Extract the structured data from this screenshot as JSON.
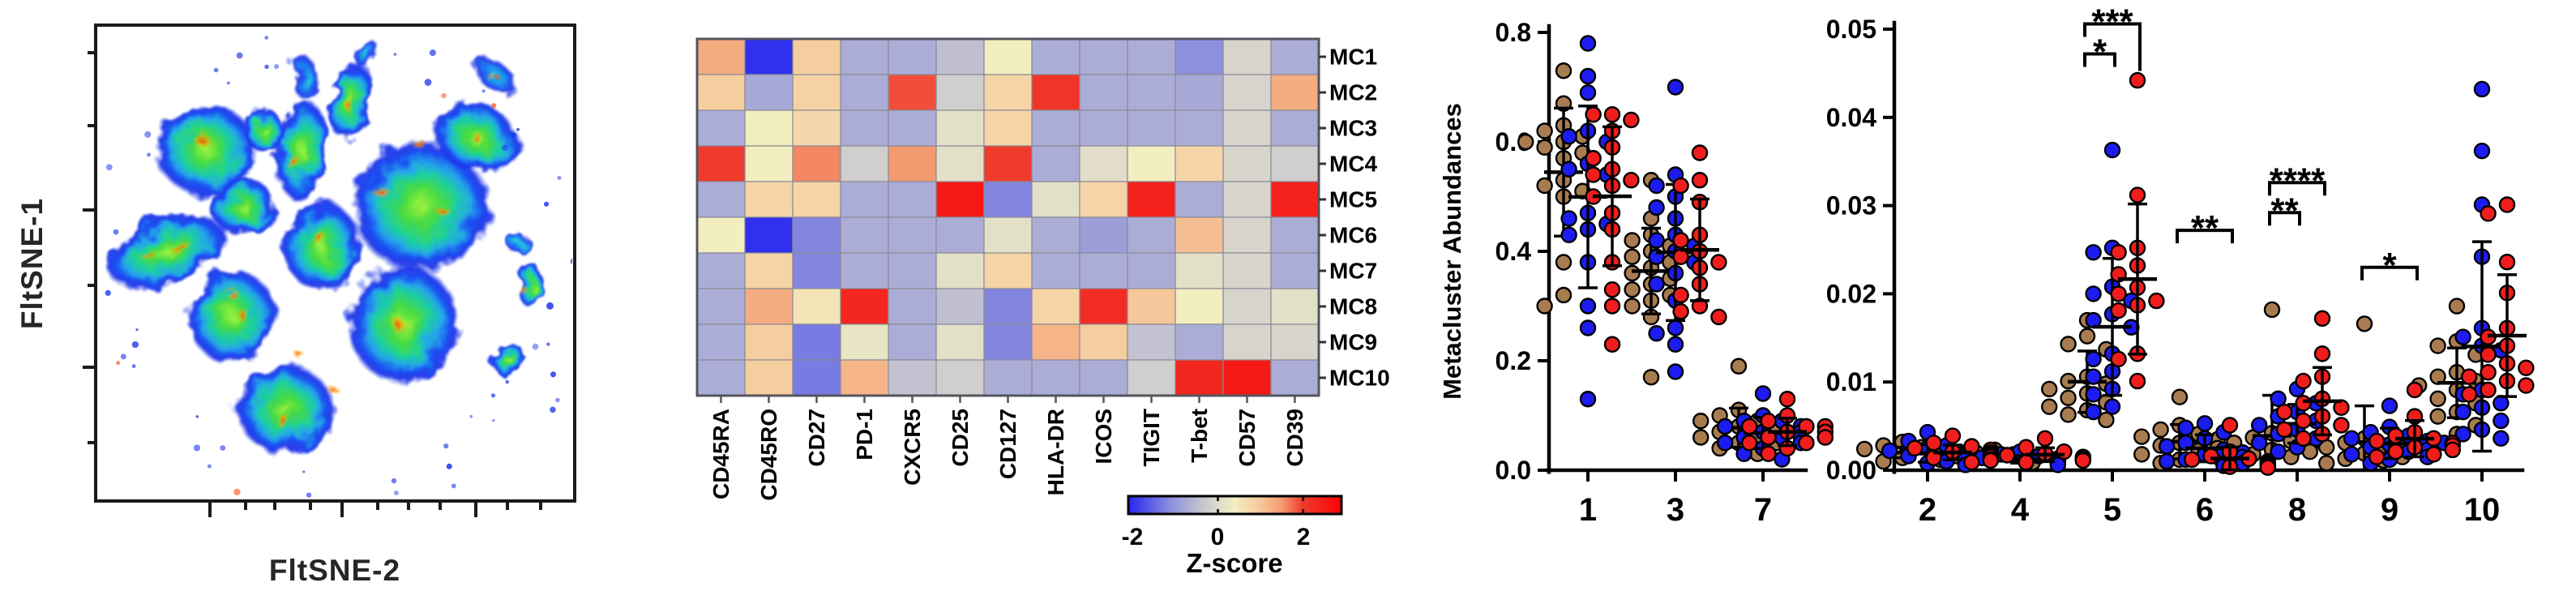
{
  "figure": {
    "background": "#ffffff",
    "description": "Three-part cytometry figure: FltSNE density map, marker z-score heatmap for metaclusters MC1-MC10, and two metacluster abundance dot plots with three sample groups (tan, blue, red) and significance brackets."
  },
  "colors": {
    "tan": "#A87C50",
    "blue": "#1C1CF0",
    "red": "#F01D1D",
    "axis": "#000000"
  },
  "chart_data": [
    {
      "id": "fltsne_density",
      "type": "heatmap",
      "subtype": "tsne-density-embedding",
      "xlabel": "FltSNE-2",
      "ylabel": "FltSNE-1",
      "note": "Stylized recreation of a 2-D FltSNE cell-density map: blue low-density island edges with green/yellow cores and orange-red high-density flecks.",
      "blobs": [
        [
          255,
          185,
          64,
          58,
          0
        ],
        [
          205,
          310,
          80,
          42,
          -18
        ],
        [
          300,
          255,
          42,
          36,
          0
        ],
        [
          286,
          390,
          56,
          60,
          0
        ],
        [
          352,
          505,
          62,
          56,
          0
        ],
        [
          398,
          305,
          48,
          58,
          0
        ],
        [
          372,
          185,
          33,
          62,
          8
        ],
        [
          432,
          125,
          26,
          48,
          12
        ],
        [
          520,
          255,
          88,
          82,
          0
        ],
        [
          588,
          170,
          56,
          44,
          28
        ],
        [
          498,
          400,
          70,
          76,
          0
        ],
        [
          612,
          95,
          32,
          18,
          32,
          "b"
        ],
        [
          655,
          352,
          20,
          27,
          0
        ],
        [
          627,
          443,
          23,
          18,
          -24
        ],
        [
          378,
          98,
          18,
          27,
          0,
          "b"
        ],
        [
          452,
          66,
          15,
          21,
          10,
          "b"
        ],
        [
          325,
          160,
          25,
          30,
          -15
        ],
        [
          640,
          300,
          15,
          14,
          0,
          "b"
        ]
      ],
      "hot_spots": [
        [
          250,
          175,
          14,
          10,
          0
        ],
        [
          222,
          305,
          16,
          7,
          -18
        ],
        [
          362,
          200,
          8,
          12,
          0
        ],
        [
          396,
          295,
          10,
          9,
          0
        ],
        [
          468,
          235,
          12,
          9,
          0
        ],
        [
          548,
          262,
          9,
          8,
          0
        ],
        [
          302,
          392,
          10,
          8,
          0
        ],
        [
          352,
          522,
          11,
          8,
          0
        ],
        [
          586,
          168,
          8,
          6,
          0
        ],
        [
          640,
          352,
          6,
          7,
          0
        ],
        [
          492,
          402,
          11,
          9,
          0
        ],
        [
          432,
          132,
          6,
          9,
          0
        ],
        [
          286,
          362,
          9,
          7,
          0
        ],
        [
          520,
          180,
          10,
          7,
          0
        ],
        [
          606,
          94,
          8,
          5,
          30
        ],
        [
          180,
          312,
          10,
          5,
          -18
        ],
        [
          410,
          480,
          8,
          6,
          0
        ],
        [
          372,
          440,
          7,
          6,
          0
        ]
      ]
    },
    {
      "id": "marker_heatmap",
      "type": "heatmap",
      "rows": [
        "MC1",
        "MC2",
        "MC3",
        "MC4",
        "MC5",
        "MC6",
        "MC7",
        "MC8",
        "MC9",
        "MC10"
      ],
      "columns": [
        "CD45RA",
        "CD45RO",
        "CD27",
        "PD-1",
        "CXCR5",
        "CD25",
        "CD127",
        "HLA-DR",
        "ICOS",
        "TIGIT",
        "T-bet",
        "CD57",
        "CD39"
      ],
      "values": [
        [
          1.3,
          -2.0,
          0.9,
          -0.7,
          -0.7,
          -0.45,
          0.4,
          -0.7,
          -0.7,
          -0.7,
          -1.1,
          -0.1,
          -0.7
        ],
        [
          0.9,
          -0.75,
          0.85,
          -0.7,
          1.9,
          -0.2,
          0.8,
          2.1,
          -0.7,
          -0.7,
          -0.75,
          -0.1,
          1.3
        ],
        [
          -0.7,
          0.4,
          0.75,
          -0.7,
          -0.7,
          0.1,
          0.8,
          -0.7,
          -0.7,
          -0.7,
          -0.7,
          -0.1,
          -0.7
        ],
        [
          2.0,
          0.4,
          1.6,
          -0.2,
          1.5,
          0.1,
          2.0,
          -0.7,
          0.05,
          0.4,
          0.8,
          -0.1,
          -0.2
        ],
        [
          -0.7,
          0.8,
          0.8,
          -0.7,
          -0.7,
          2.5,
          -1.2,
          0.1,
          0.8,
          2.4,
          -0.7,
          -0.1,
          2.4
        ],
        [
          0.4,
          -2.0,
          -1.2,
          -0.7,
          -0.7,
          -0.7,
          0.1,
          -0.7,
          -0.9,
          -0.7,
          1.1,
          -0.1,
          -0.7
        ],
        [
          -0.7,
          0.8,
          -1.2,
          -0.7,
          -0.7,
          0.1,
          0.8,
          -0.7,
          -0.7,
          -0.7,
          0.1,
          -0.1,
          -0.7
        ],
        [
          -0.7,
          1.3,
          0.55,
          2.3,
          -0.7,
          -0.45,
          -1.2,
          0.8,
          2.2,
          1.0,
          0.4,
          -0.1,
          0.1
        ],
        [
          -0.7,
          0.9,
          -1.3,
          0.2,
          -0.7,
          0.1,
          -1.2,
          1.2,
          0.9,
          -0.4,
          -0.7,
          -0.1,
          -0.1
        ],
        [
          -0.7,
          0.9,
          -1.3,
          1.2,
          -0.4,
          -0.2,
          -0.7,
          -0.7,
          -0.7,
          -0.2,
          2.3,
          2.5,
          -0.7
        ]
      ],
      "colorbar": {
        "label": "Z-score",
        "ticks": [
          "-2",
          "0",
          "2"
        ],
        "range": [
          -2.1,
          2.9
        ]
      }
    },
    {
      "id": "abundance_major",
      "type": "scatter",
      "ylabel": "Metacluster Abundances",
      "ylim": [
        0,
        0.8
      ],
      "yticks": [
        "0.0",
        "0.2",
        "0.4",
        "0.6",
        "0.8"
      ],
      "categories": [
        "1",
        "3",
        "7"
      ],
      "series": [
        {
          "name": "tan",
          "color": "#A87C50",
          "values": {
            "1": [
              0.73,
              0.67,
              0.63,
              0.62,
              0.61,
              0.6,
              0.6,
              0.59,
              0.58,
              0.57,
              0.53,
              0.52,
              0.51,
              0.5,
              0.38,
              0.32,
              0.3
            ],
            "3": [
              0.53,
              0.46,
              0.43,
              0.42,
              0.41,
              0.4,
              0.39,
              0.38,
              0.37,
              0.36,
              0.35,
              0.34,
              0.33,
              0.32,
              0.31,
              0.3,
              0.28,
              0.17
            ],
            "7": [
              0.19,
              0.11,
              0.1,
              0.09,
              0.09,
              0.08,
              0.08,
              0.08,
              0.07,
              0.07,
              0.07,
              0.06,
              0.06,
              0.05,
              0.05,
              0.04,
              0.03
            ]
          }
        },
        {
          "name": "blue",
          "color": "#1C1CF0",
          "values": {
            "1": [
              0.78,
              0.72,
              0.69,
              0.62,
              0.61,
              0.6,
              0.56,
              0.55,
              0.54,
              0.47,
              0.46,
              0.45,
              0.44,
              0.43,
              0.38,
              0.3,
              0.26,
              0.13
            ],
            "3": [
              0.7,
              0.54,
              0.52,
              0.5,
              0.48,
              0.46,
              0.43,
              0.42,
              0.41,
              0.4,
              0.39,
              0.38,
              0.36,
              0.34,
              0.31,
              0.26,
              0.25,
              0.23,
              0.18
            ],
            "7": [
              0.14,
              0.1,
              0.09,
              0.09,
              0.08,
              0.08,
              0.07,
              0.07,
              0.07,
              0.06,
              0.06,
              0.06,
              0.05,
              0.05,
              0.04,
              0.03,
              0.02
            ]
          }
        },
        {
          "name": "red",
          "color": "#F01D1D",
          "values": {
            "1": [
              0.65,
              0.65,
              0.64,
              0.62,
              0.59,
              0.57,
              0.55,
              0.54,
              0.53,
              0.52,
              0.5,
              0.47,
              0.44,
              0.38,
              0.33,
              0.3,
              0.23
            ],
            "3": [
              0.58,
              0.53,
              0.52,
              0.49,
              0.43,
              0.42,
              0.4,
              0.39,
              0.38,
              0.37,
              0.34,
              0.32,
              0.3,
              0.29,
              0.28
            ],
            "7": [
              0.13,
              0.1,
              0.09,
              0.08,
              0.08,
              0.08,
              0.07,
              0.07,
              0.06,
              0.06,
              0.06,
              0.05,
              0.05,
              0.04,
              0.03
            ]
          }
        }
      ]
    },
    {
      "id": "abundance_minor",
      "type": "scatter",
      "ylim": [
        0,
        0.05
      ],
      "yticks": [
        "0.00",
        "0.01",
        "0.02",
        "0.03",
        "0.04",
        "0.05"
      ],
      "categories": [
        "2",
        "4",
        "5",
        "6",
        "8",
        "9",
        "10"
      ],
      "series": [
        {
          "name": "tan",
          "color": "#A87C50",
          "values": {
            "2": [
              0.0032,
              0.0028,
              0.0026,
              0.0024,
              0.0023,
              0.0022,
              0.0021,
              0.002,
              0.0019,
              0.0018,
              0.0017,
              0.0016,
              0.0014,
              0.0012,
              0.001
            ],
            "4": [
              0.0023,
              0.002,
              0.0018,
              0.0016,
              0.0015,
              0.0014,
              0.0013,
              0.0013,
              0.0012,
              0.0011,
              0.001,
              0.0009
            ],
            "5": [
              0.017,
              0.0152,
              0.0143,
              0.0137,
              0.0106,
              0.0101,
              0.0098,
              0.0092,
              0.0087,
              0.0082,
              0.0077,
              0.0072,
              0.0068,
              0.0063,
              0.0057
            ],
            "6": [
              0.0083,
              0.0051,
              0.0046,
              0.0041,
              0.0038,
              0.0035,
              0.0031,
              0.0028,
              0.0025,
              0.0022,
              0.0018,
              0.0015,
              0.0012,
              0.0008
            ],
            "8": [
              0.0182,
              0.0042,
              0.0037,
              0.0033,
              0.0031,
              0.0028,
              0.0026,
              0.0023,
              0.0021,
              0.0018,
              0.0015,
              0.0012
            ],
            "9": [
              0.0166,
              0.0036,
              0.0031,
              0.0028,
              0.0026,
              0.0023,
              0.0021,
              0.0019,
              0.0017,
              0.0015,
              0.0013,
              0.0011,
              0.0008
            ],
            "10": [
              0.0186,
              0.0146,
              0.0141,
              0.0131,
              0.0111,
              0.0106,
              0.0101,
              0.0096,
              0.0091,
              0.0081,
              0.0076,
              0.0066,
              0.0061,
              0.0051,
              0.0041
            ]
          }
        },
        {
          "name": "blue",
          "color": "#1C1CF0",
          "values": {
            "2": [
              0.0043,
              0.0033,
              0.0028,
              0.0025,
              0.0022,
              0.002,
              0.0018,
              0.0017,
              0.0016,
              0.0014,
              0.0013,
              0.0012,
              0.001,
              0.0008,
              0.0006
            ],
            "4": [
              0.0021,
              0.0018,
              0.0016,
              0.0014,
              0.0013,
              0.0012,
              0.0011,
              0.001,
              0.001,
              0.0009,
              0.0008,
              0.0006
            ],
            "5": [
              0.0363,
              0.0252,
              0.0247,
              0.0208,
              0.02,
              0.0192,
              0.0177,
              0.017,
              0.0162,
              0.0132,
              0.0126,
              0.0112,
              0.0106,
              0.0092,
              0.0086,
              0.0072,
              0.0066
            ],
            "6": [
              0.0053,
              0.0048,
              0.0043,
              0.0036,
              0.0031,
              0.0027,
              0.0023,
              0.002,
              0.0018,
              0.0015,
              0.0012,
              0.001,
              0.0008,
              0.0005
            ],
            "8": [
              0.0092,
              0.0081,
              0.0076,
              0.0066,
              0.0061,
              0.0056,
              0.0051,
              0.0046,
              0.0041,
              0.0036,
              0.0031,
              0.0026,
              0.0021
            ],
            "9": [
              0.0073,
              0.0049,
              0.0043,
              0.0039,
              0.0036,
              0.0033,
              0.0029,
              0.0026,
              0.0023,
              0.0021,
              0.0018,
              0.0015,
              0.0012,
              0.0008
            ],
            "10": [
              0.0432,
              0.0362,
              0.0301,
              0.0242,
              0.0161,
              0.0151,
              0.0141,
              0.0136,
              0.0091,
              0.0086,
              0.0076,
              0.0071,
              0.0066,
              0.0056,
              0.0046,
              0.0041,
              0.0036,
              0.0031
            ]
          }
        },
        {
          "name": "red",
          "color": "#F01D1D",
          "values": {
            "2": [
              0.0039,
              0.0031,
              0.0027,
              0.0025,
              0.0023,
              0.0021,
              0.002,
              0.0018,
              0.0017,
              0.0015,
              0.0014,
              0.0012,
              0.0011,
              0.0009
            ],
            "4": [
              0.0036,
              0.0026,
              0.0021,
              0.0019,
              0.0017,
              0.0015,
              0.0014,
              0.0013,
              0.0012,
              0.0011,
              0.0009
            ],
            "5": [
              0.0442,
              0.0312,
              0.0252,
              0.0247,
              0.0232,
              0.0222,
              0.0207,
              0.02,
              0.0192,
              0.0187,
              0.0181,
              0.0132,
              0.0126,
              0.0101
            ],
            "6": [
              0.0051,
              0.0021,
              0.0016,
              0.0013,
              0.0012,
              0.001,
              0.0009,
              0.0008,
              0.0007,
              0.0005,
              0.0004,
              0.0003
            ],
            "8": [
              0.0172,
              0.0132,
              0.0106,
              0.0101,
              0.0081,
              0.0076,
              0.0071,
              0.0066,
              0.0061,
              0.0056,
              0.0051,
              0.0046,
              0.0041,
              0.0036
            ],
            "9": [
              0.0091,
              0.0061,
              0.0043,
              0.0039,
              0.0036,
              0.0033,
              0.0031,
              0.0028,
              0.0026,
              0.0023,
              0.0021,
              0.0018,
              0.0015
            ],
            "10": [
              0.0301,
              0.0291,
              0.0236,
              0.0201,
              0.0161,
              0.0151,
              0.0141,
              0.0131,
              0.0121,
              0.0116,
              0.0111,
              0.0106,
              0.0101,
              0.0096,
              0.0091,
              0.0086
            ]
          }
        }
      ],
      "significance": [
        {
          "category": "5",
          "between": [
            "tan",
            "blue"
          ],
          "label": "*",
          "y": 0.0472
        },
        {
          "category": "5",
          "between": [
            "tan",
            "red"
          ],
          "label": "***",
          "y": 0.0506,
          "legB": 58
        },
        {
          "category": "6",
          "between": [
            "tan",
            "red"
          ],
          "label": "**",
          "y": 0.0272
        },
        {
          "category": "8",
          "between": [
            "tan",
            "blue"
          ],
          "label": "**",
          "y": 0.0292
        },
        {
          "category": "8",
          "between": [
            "tan",
            "red"
          ],
          "label": "****",
          "y": 0.0326
        },
        {
          "category": "9",
          "between": [
            "tan",
            "red"
          ],
          "label": "*",
          "y": 0.023
        }
      ]
    }
  ]
}
